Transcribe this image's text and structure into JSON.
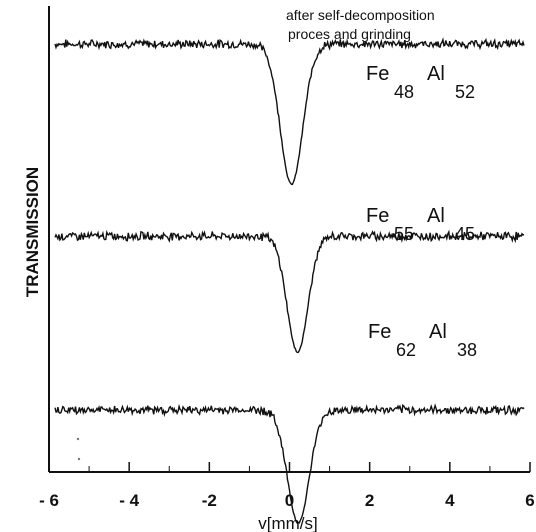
{
  "chart_data": {
    "type": "line",
    "xlabel": "v[mm/s]",
    "ylabel": "TRANSMISSION",
    "xlim": [
      -6,
      6
    ],
    "xticks": [
      "- 6",
      "- 4",
      "-2",
      "0",
      "2",
      "4",
      "6"
    ],
    "grid": false,
    "annotation": [
      "after self-decomposition",
      "proces and grinding"
    ],
    "series": [
      {
        "label_main": [
          "Fe",
          "Al"
        ],
        "label_sub": [
          "48",
          "52"
        ],
        "baseline": 1.0,
        "dip_center": 0.05,
        "dip_depth": 0.46,
        "dip_width": 0.28,
        "color": "#111111"
      },
      {
        "label_main": [
          "Fe",
          "Al"
        ],
        "label_sub": [
          "55",
          "45"
        ],
        "baseline": 0.37,
        "dip_center": 0.2,
        "dip_depth": 0.38,
        "dip_width": 0.26,
        "color": "#111111"
      },
      {
        "label_main": [
          "Fe",
          "Al"
        ],
        "label_sub": [
          "62",
          "38"
        ],
        "baseline": -0.2,
        "dip_center": 0.22,
        "dip_depth": 0.37,
        "dip_width": 0.27,
        "color": "#111111"
      }
    ]
  }
}
